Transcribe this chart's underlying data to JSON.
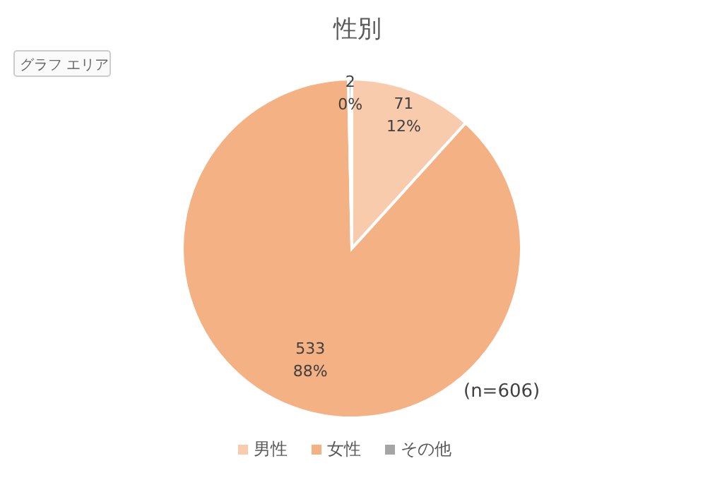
{
  "chart_data": {
    "type": "pie",
    "title": "性別",
    "categories": [
      "男性",
      "女性",
      "その他"
    ],
    "values": [
      71,
      533,
      2
    ],
    "colors": [
      "#f8cbad",
      "#f4b183",
      "#a5a5a5"
    ],
    "value_labels": [
      "71\n12%",
      "533\n88%",
      "2\n0%"
    ],
    "legend": "bottom",
    "annotations": [
      "グラフ エリア",
      "(n=606)"
    ]
  }
}
